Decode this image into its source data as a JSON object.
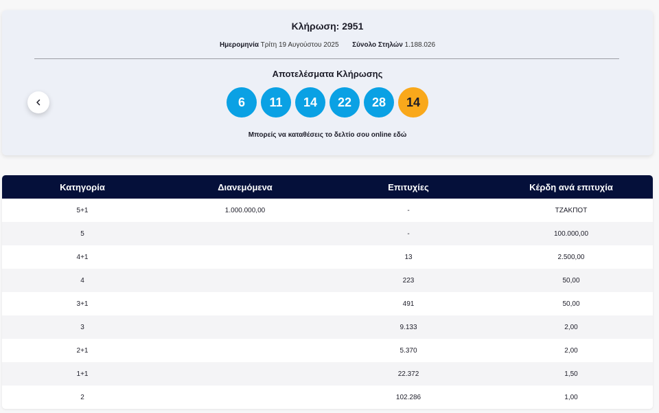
{
  "draw": {
    "title": "Κλήρωση: 2951",
    "date_label": "Ημερομηνία",
    "date_value": "Τρίτη 19 Αυγούστου 2025",
    "columns_label": "Σύνολο Στηλών",
    "columns_value": "1.188.026",
    "results_title": "Αποτελέσματα Κλήρωσης",
    "numbers": [
      "6",
      "11",
      "14",
      "22",
      "28"
    ],
    "bonus": "14",
    "cta": "Μπορείς να καταθέσεις το δελτίο σου online εδώ",
    "colors": {
      "ball": "#0aa1e4",
      "bonus": "#f9a81b",
      "header": "#05103a"
    },
    "prev_icon": "chevron-left-icon"
  },
  "table": {
    "headers": [
      "Κατηγορία",
      "Διανεμόμενα",
      "Επιτυχίες",
      "Κέρδη ανά επιτυχία"
    ],
    "rows": [
      [
        "5+1",
        "1.000.000,00",
        "-",
        "ΤΖΑΚΠΟΤ"
      ],
      [
        "5",
        "",
        "-",
        "100.000,00"
      ],
      [
        "4+1",
        "",
        "13",
        "2.500,00"
      ],
      [
        "4",
        "",
        "223",
        "50,00"
      ],
      [
        "3+1",
        "",
        "491",
        "50,00"
      ],
      [
        "3",
        "",
        "9.133",
        "2,00"
      ],
      [
        "2+1",
        "",
        "5.370",
        "2,00"
      ],
      [
        "1+1",
        "",
        "22.372",
        "1,50"
      ],
      [
        "2",
        "",
        "102.286",
        "1,00"
      ]
    ]
  }
}
